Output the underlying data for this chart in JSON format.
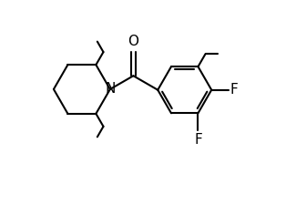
{
  "background": "#ffffff",
  "line_color": "#000000",
  "line_width": 1.5,
  "font_size_N": 11,
  "font_size_O": 11,
  "font_size_F": 11,
  "figsize": [
    3.14,
    2.24
  ],
  "dpi": 100,
  "xlim": [
    0.0,
    10.5
  ],
  "ylim": [
    0.0,
    7.5
  ]
}
